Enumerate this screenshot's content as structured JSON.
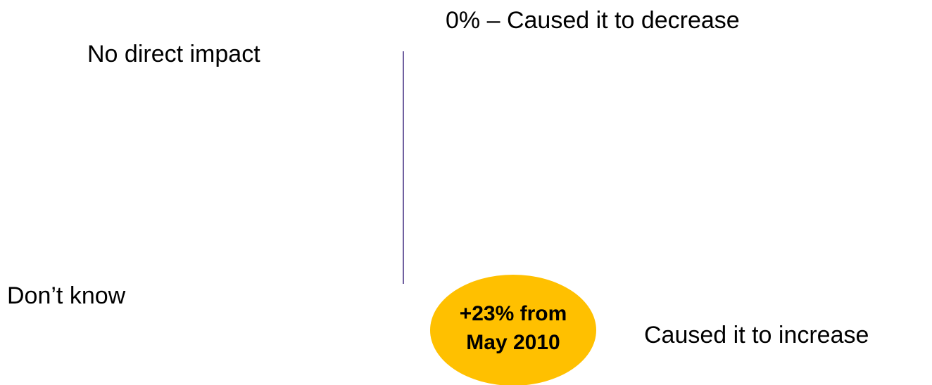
{
  "labels": {
    "decrease": "0% – Caused it to decrease",
    "no_impact": "No direct impact",
    "dont_know": "Don’t know",
    "increase": "Caused it to increase"
  },
  "callout": {
    "lines": [
      "+23% from",
      "May 2010"
    ]
  }
}
